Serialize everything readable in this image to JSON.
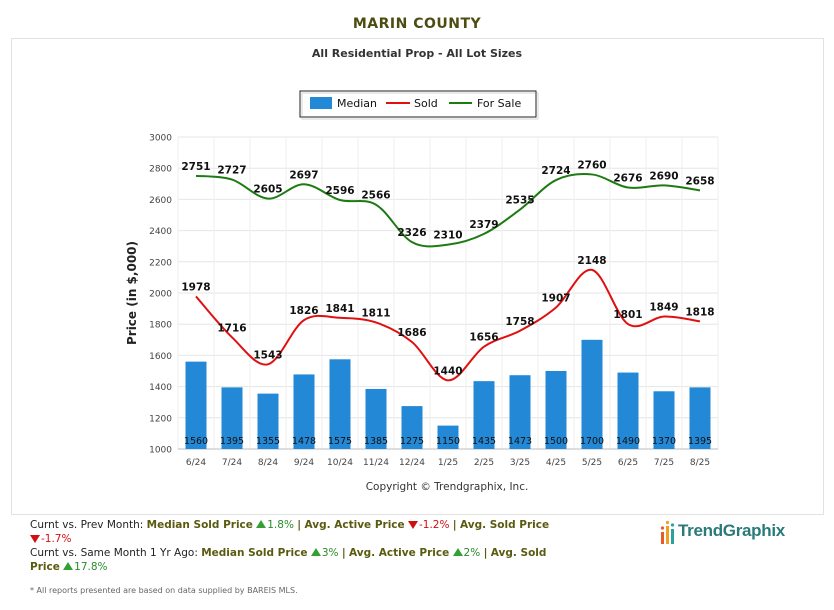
{
  "page_title": "MARIN COUNTY",
  "chart_data": {
    "type": "bar",
    "title": "All Residential Prop - All Lot Sizes",
    "ylabel": "Price (in $,000)",
    "xlabel": "",
    "ylim": [
      1000,
      3000
    ],
    "yticks": [
      "1000",
      "1200",
      "1400",
      "1600",
      "1800",
      "2000",
      "2200",
      "2400",
      "2600",
      "2800",
      "3000"
    ],
    "grid": true,
    "legend_position": "top-center",
    "categories": [
      "6/24",
      "7/24",
      "8/24",
      "9/24",
      "10/24",
      "11/24",
      "12/24",
      "1/25",
      "2/25",
      "3/25",
      "4/25",
      "5/25",
      "6/25",
      "7/25",
      "8/25"
    ],
    "series": [
      {
        "name": "Median",
        "type": "bar",
        "color": "#2389d6",
        "values": [
          1560,
          1395,
          1355,
          1478,
          1575,
          1385,
          1275,
          1150,
          1435,
          1473,
          1500,
          1700,
          1490,
          1370,
          1395
        ],
        "labels": [
          "1560",
          "1395",
          "1355",
          "1478",
          "1575",
          "1385",
          "1275",
          "1150",
          "1435",
          "1473",
          "1500",
          "1700",
          "1490",
          "1370",
          "1395"
        ]
      },
      {
        "name": "Sold",
        "type": "line",
        "color": "#e01010",
        "values": [
          1978,
          1716,
          1543,
          1826,
          1841,
          1811,
          1686,
          1440,
          1656,
          1758,
          1907,
          2148,
          1801,
          1849,
          1818
        ],
        "labels": [
          "1978",
          "1716",
          "1543",
          "1826",
          "1841",
          "1811",
          "1686",
          "1440",
          "1656",
          "1758",
          "1907",
          "2148",
          "1801",
          "1849",
          "1818"
        ]
      },
      {
        "name": "For Sale",
        "type": "line",
        "color": "#1e7a12",
        "values": [
          2751,
          2727,
          2605,
          2697,
          2596,
          2566,
          2326,
          2310,
          2379,
          2535,
          2724,
          2760,
          2676,
          2690,
          2658
        ],
        "labels": [
          "2751",
          "2727",
          "2605",
          "2697",
          "2596",
          "2566",
          "2326",
          "2310",
          "2379",
          "2535",
          "2724",
          "2760",
          "2676",
          "2690",
          "2658"
        ]
      }
    ],
    "copyright": "Copyright © Trendgraphix, Inc."
  },
  "summary": {
    "line1": {
      "prefix": "Curnt vs. Prev Month:",
      "m1_label": "Median Sold Price",
      "m1_value": "1.8%",
      "sep1": "|",
      "m2_label": "Avg. Active Price",
      "m2_value": "-1.2%",
      "sep2": "|",
      "m3_label": "Avg. Sold Price",
      "m3_value": "-1.7%"
    },
    "line2": {
      "prefix": "Curnt vs. Same Month 1 Yr Ago:",
      "m1_label": "Median Sold Price",
      "m1_value": "3%",
      "sep1": "|",
      "m2_label": "Avg. Active Price",
      "m2_value": "2%",
      "sep2": "|",
      "m3_label": "Avg. Sold Price",
      "m3_value": "17.8%"
    }
  },
  "footnote": "* All reports presented are based on data supplied by BAREIS MLS.",
  "logo": {
    "text": "TrendGraphix",
    "icon": "trendgraphix-bars-icon"
  },
  "colors": {
    "title": "#4d4d12",
    "metric": "#5a5a10",
    "up": "#2a8a2a",
    "down": "#d01010"
  }
}
